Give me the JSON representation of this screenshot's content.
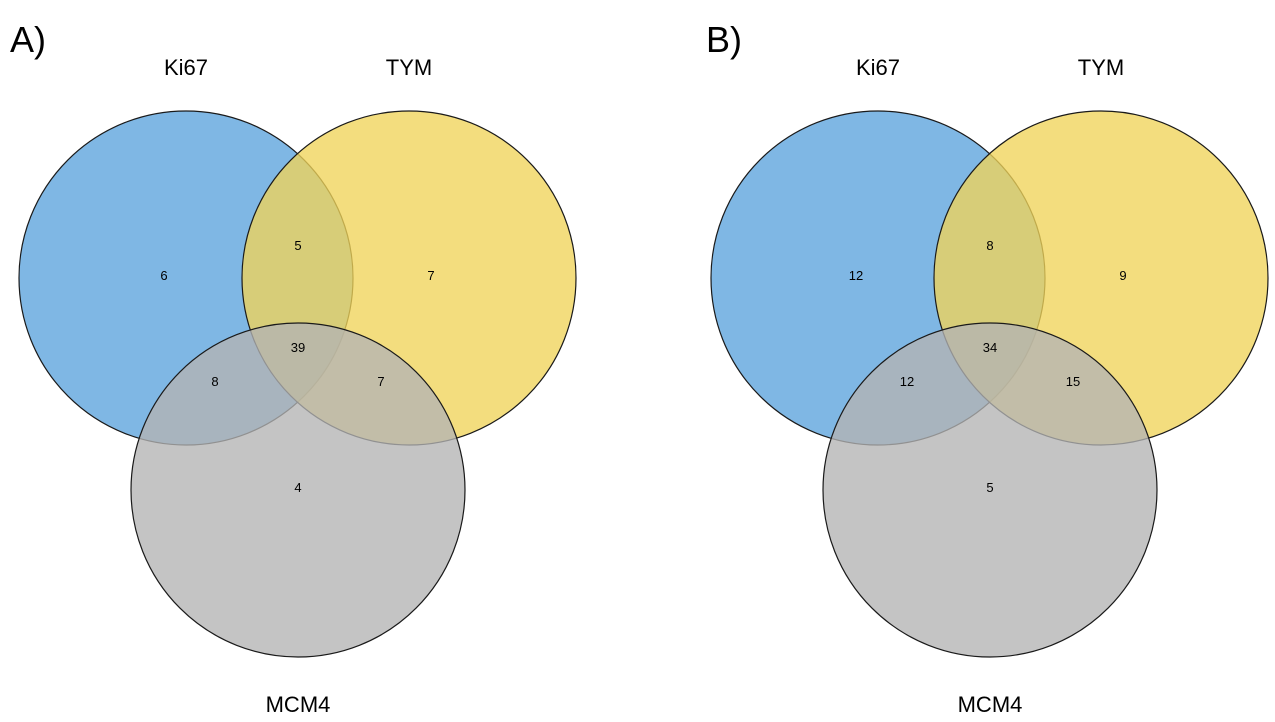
{
  "colors": {
    "Ki67": "#5ba3dc",
    "TYM": "#f0d45a",
    "MCM4": "#b3b3b3",
    "outline": "#1a1a1a"
  },
  "panels": [
    {
      "letter": "A)",
      "sets": {
        "Ki67": "Ki67",
        "TYM": "TYM",
        "MCM4": "MCM4"
      },
      "counts": {
        "ki67_only": "6",
        "tym_only": "7",
        "mcm4_only": "4",
        "ki67_tym": "5",
        "ki67_mcm4": "8",
        "tym_mcm4": "7",
        "all": "39"
      }
    },
    {
      "letter": "B)",
      "sets": {
        "Ki67": "Ki67",
        "TYM": "TYM",
        "MCM4": "MCM4"
      },
      "counts": {
        "ki67_only": "12",
        "tym_only": "9",
        "mcm4_only": "5",
        "ki67_tym": "8",
        "ki67_mcm4": "12",
        "tym_mcm4": "15",
        "all": "34"
      }
    }
  ]
}
